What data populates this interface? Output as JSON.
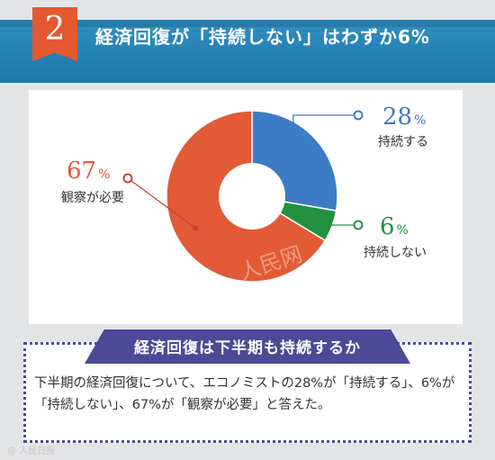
{
  "header": {
    "number": "2",
    "title": "経済回復が「持続しない」はわずか6%"
  },
  "chart_data": {
    "type": "pie",
    "donut": true,
    "slices": [
      {
        "label": "持続する",
        "value": 28,
        "display": "28",
        "color": "#3d7cc4",
        "label_color": "#3d7cc4",
        "marker_color": "#3d7cc4"
      },
      {
        "label": "持続しない",
        "value": 6,
        "display": "6",
        "color": "#239141",
        "label_color": "#239141",
        "marker_color": "#239141"
      },
      {
        "label": "観察が必要",
        "value": 67,
        "display": "67",
        "color": "#e25a36",
        "label_color": "#e25a36",
        "marker_color": "#c64330"
      }
    ],
    "unit": "%"
  },
  "watermark": "人民网",
  "summary": {
    "heading": "経済回復は下半期も持続するか",
    "text": "下半期の経済回復について、エコノミストの28%が「持続する」、6%が「持続しない」、67%が「観察が必要」と答えた。"
  },
  "credit": "@ 人民日报"
}
